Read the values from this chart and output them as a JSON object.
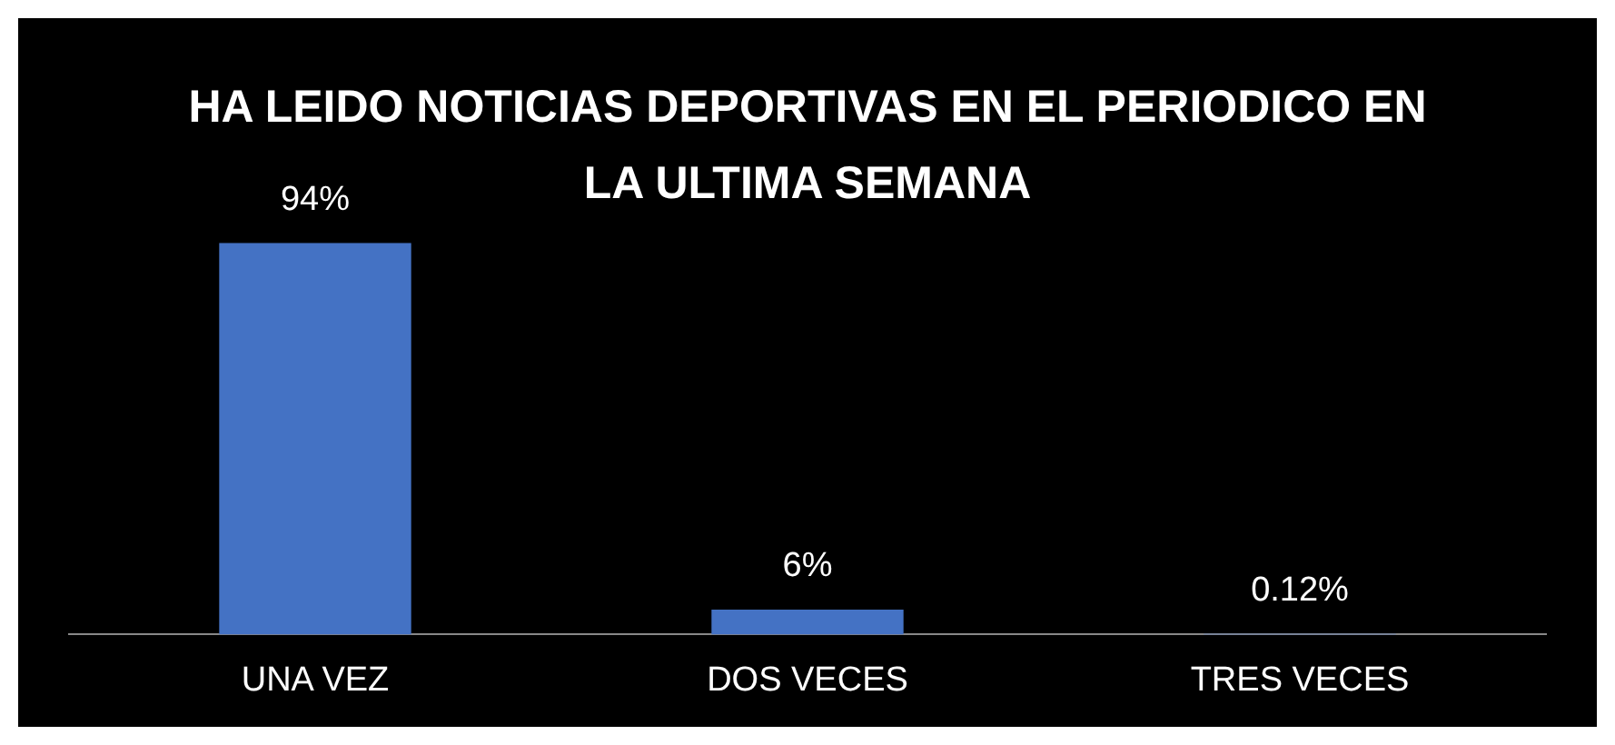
{
  "chart_data": {
    "type": "bar",
    "title": "HA LEIDO NOTICIAS DEPORTIVAS EN EL PERIODICO EN LA ULTIMA SEMANA",
    "categories": [
      "UNA VEZ",
      "DOS VECES",
      "TRES VECES"
    ],
    "values": [
      94,
      6,
      0.12
    ],
    "value_labels": [
      "94%",
      "6%",
      "0.12%"
    ],
    "color": "#4472c4",
    "legend": false
  }
}
